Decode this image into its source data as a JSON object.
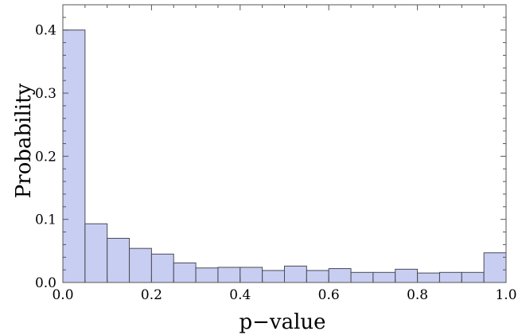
{
  "chart_data": {
    "type": "bar",
    "title": "",
    "xlabel": "p−value",
    "ylabel": "Probability",
    "xlim": [
      0.0,
      1.0
    ],
    "ylim": [
      0.0,
      0.44
    ],
    "bin_width": 0.05,
    "bins": [
      {
        "x0": 0.0,
        "x1": 0.05,
        "value": 0.4
      },
      {
        "x0": 0.05,
        "x1": 0.1,
        "value": 0.093
      },
      {
        "x0": 0.1,
        "x1": 0.15,
        "value": 0.07
      },
      {
        "x0": 0.15,
        "x1": 0.2,
        "value": 0.054
      },
      {
        "x0": 0.2,
        "x1": 0.25,
        "value": 0.045
      },
      {
        "x0": 0.25,
        "x1": 0.3,
        "value": 0.031
      },
      {
        "x0": 0.3,
        "x1": 0.35,
        "value": 0.023
      },
      {
        "x0": 0.35,
        "x1": 0.4,
        "value": 0.024
      },
      {
        "x0": 0.4,
        "x1": 0.45,
        "value": 0.024
      },
      {
        "x0": 0.45,
        "x1": 0.5,
        "value": 0.019
      },
      {
        "x0": 0.5,
        "x1": 0.55,
        "value": 0.026
      },
      {
        "x0": 0.55,
        "x1": 0.6,
        "value": 0.019
      },
      {
        "x0": 0.6,
        "x1": 0.65,
        "value": 0.022
      },
      {
        "x0": 0.65,
        "x1": 0.7,
        "value": 0.016
      },
      {
        "x0": 0.7,
        "x1": 0.75,
        "value": 0.016
      },
      {
        "x0": 0.75,
        "x1": 0.8,
        "value": 0.021
      },
      {
        "x0": 0.8,
        "x1": 0.85,
        "value": 0.015
      },
      {
        "x0": 0.85,
        "x1": 0.9,
        "value": 0.016
      },
      {
        "x0": 0.9,
        "x1": 0.95,
        "value": 0.016
      },
      {
        "x0": 0.95,
        "x1": 1.0,
        "value": 0.047
      }
    ],
    "x_ticks": [
      {
        "value": 0.0,
        "label": "0.0"
      },
      {
        "value": 0.2,
        "label": "0.2"
      },
      {
        "value": 0.4,
        "label": "0.4"
      },
      {
        "value": 0.6,
        "label": "0.6"
      },
      {
        "value": 0.8,
        "label": "0.8"
      },
      {
        "value": 1.0,
        "label": "1.0"
      }
    ],
    "y_ticks": [
      {
        "value": 0.0,
        "label": "0.0"
      },
      {
        "value": 0.1,
        "label": "0.1"
      },
      {
        "value": 0.2,
        "label": "0.2"
      },
      {
        "value": 0.3,
        "label": "0.3"
      },
      {
        "value": 0.4,
        "label": "0.4"
      }
    ],
    "grid": false,
    "legend": "none",
    "colors": {
      "bar_fill": "#c8cdf2",
      "bar_stroke": "#4a4a55",
      "axis": "#555555"
    }
  }
}
